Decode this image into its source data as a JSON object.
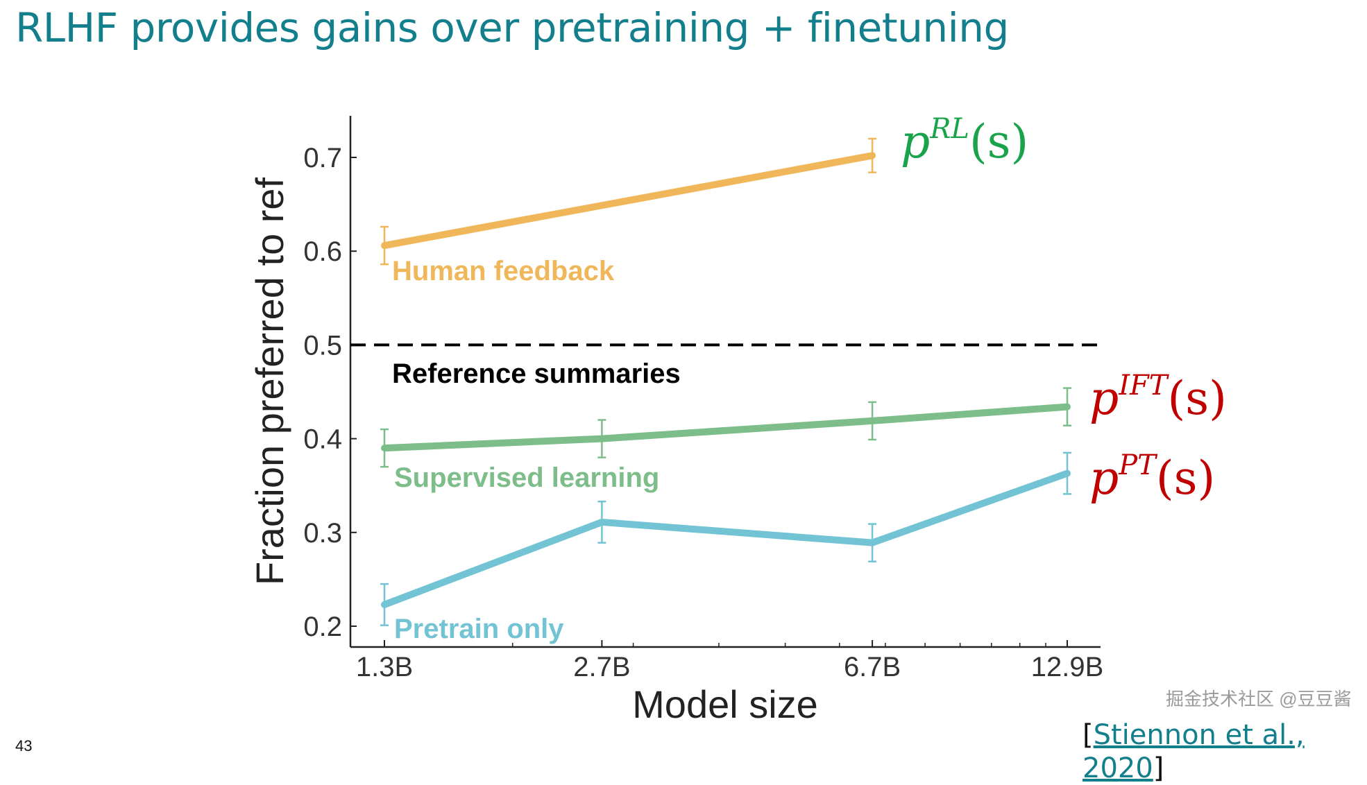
{
  "title": "RLHF provides gains over pretraining + finetuning",
  "slide_number": "43",
  "citation": {
    "open": "[",
    "text": "Stiennon et al., 2020",
    "close": "]"
  },
  "watermark": "掘金技术社区 @豆豆酱",
  "annotations": {
    "rl": {
      "base": "p",
      "sup": "RL",
      "arg": "(s)",
      "color": "#1aa34a"
    },
    "ift": {
      "base": "p",
      "sup": "IFT",
      "arg": "(s)",
      "color": "#c00000"
    },
    "pt": {
      "base": "p",
      "sup": "PT",
      "arg": "(s)",
      "color": "#c00000"
    }
  },
  "chart_data": {
    "type": "line",
    "xlabel": "Model size",
    "ylabel": "Fraction preferred to ref",
    "x_scale": "log",
    "categories": [
      "1.3B",
      "2.7B",
      "6.7B",
      "12.9B"
    ],
    "x": [
      1.3,
      2.7,
      6.7,
      12.9
    ],
    "ylim": [
      0.18,
      0.74
    ],
    "yticks": [
      "0.2",
      "0.3",
      "0.4",
      "0.5",
      "0.6",
      "0.7"
    ],
    "reference_line": {
      "y": 0.5,
      "label": "Reference summaries",
      "color": "#000000"
    },
    "series": [
      {
        "name": "Human feedback",
        "color": "#f0b75a",
        "x": [
          1.3,
          6.7
        ],
        "values": [
          0.606,
          0.702
        ],
        "err": [
          0.02,
          0.018
        ]
      },
      {
        "name": "Supervised learning",
        "color": "#7dbd8a",
        "x": [
          1.3,
          2.7,
          6.7,
          12.9
        ],
        "values": [
          0.39,
          0.4,
          0.419,
          0.434
        ],
        "err": [
          0.02,
          0.02,
          0.02,
          0.02
        ]
      },
      {
        "name": "Pretrain only",
        "color": "#72c4d4",
        "x": [
          1.3,
          2.7,
          6.7,
          12.9
        ],
        "values": [
          0.223,
          0.311,
          0.289,
          0.363
        ],
        "err": [
          0.022,
          0.022,
          0.02,
          0.022
        ]
      }
    ]
  }
}
